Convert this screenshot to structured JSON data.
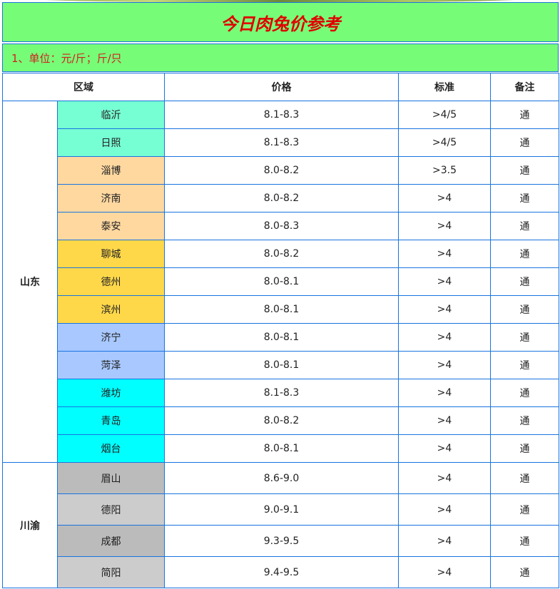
{
  "title": "今日肉兔价参考",
  "note": "1、单位：元/斤；斤/只",
  "headers": {
    "region": "区域",
    "price": "价格",
    "standard": "标准",
    "remark": "备注"
  },
  "groups": [
    {
      "region": "山东",
      "rows": [
        {
          "city": "临沂",
          "price": "8.1-8.3",
          "standard": ">4/5",
          "remark": "通",
          "color": "#77ffd4"
        },
        {
          "city": "日照",
          "price": "8.1-8.3",
          "standard": ">4/5",
          "remark": "通",
          "color": "#77ffd4"
        },
        {
          "city": "淄博",
          "price": "8.0-8.2",
          "standard": ">3.5",
          "remark": "通",
          "color": "#ffd8a0"
        },
        {
          "city": "济南",
          "price": "8.0-8.2",
          "standard": ">4",
          "remark": "通",
          "color": "#ffd8a0"
        },
        {
          "city": "泰安",
          "price": "8.0-8.3",
          "standard": ">4",
          "remark": "通",
          "color": "#ffd8a0"
        },
        {
          "city": "聊城",
          "price": "8.0-8.2",
          "standard": ">4",
          "remark": "通",
          "color": "#ffd84a"
        },
        {
          "city": "德州",
          "price": "8.0-8.1",
          "standard": ">4",
          "remark": "通",
          "color": "#ffd84a"
        },
        {
          "city": "滨州",
          "price": "8.0-8.1",
          "standard": ">4",
          "remark": "通",
          "color": "#ffd84a"
        },
        {
          "city": "济宁",
          "price": "8.0-8.1",
          "standard": ">4",
          "remark": "通",
          "color": "#a8c8ff"
        },
        {
          "city": "菏泽",
          "price": "8.0-8.1",
          "standard": ">4",
          "remark": "通",
          "color": "#a8c8ff"
        },
        {
          "city": "潍坊",
          "price": "8.1-8.3",
          "standard": ">4",
          "remark": "通",
          "color": "#00ffff"
        },
        {
          "city": "青岛",
          "price": "8.0-8.2",
          "standard": ">4",
          "remark": "通",
          "color": "#00ffff"
        },
        {
          "city": "烟台",
          "price": "8.0-8.1",
          "standard": ">4",
          "remark": "通",
          "color": "#00ffff"
        }
      ]
    },
    {
      "region": "川渝",
      "rows": [
        {
          "city": "眉山",
          "price": "8.6-9.0",
          "standard": ">4",
          "remark": "通",
          "color": "#bbbbbb"
        },
        {
          "city": "德阳",
          "price": "9.0-9.1",
          "standard": ">4",
          "remark": "通",
          "color": "#cccccc"
        },
        {
          "city": "成都",
          "price": "9.3-9.5",
          "standard": ">4",
          "remark": "通",
          "color": "#bbbbbb"
        },
        {
          "city": "简阳",
          "price": "9.4-9.5",
          "standard": ">4",
          "remark": "通",
          "color": "#cccccc"
        }
      ]
    }
  ]
}
